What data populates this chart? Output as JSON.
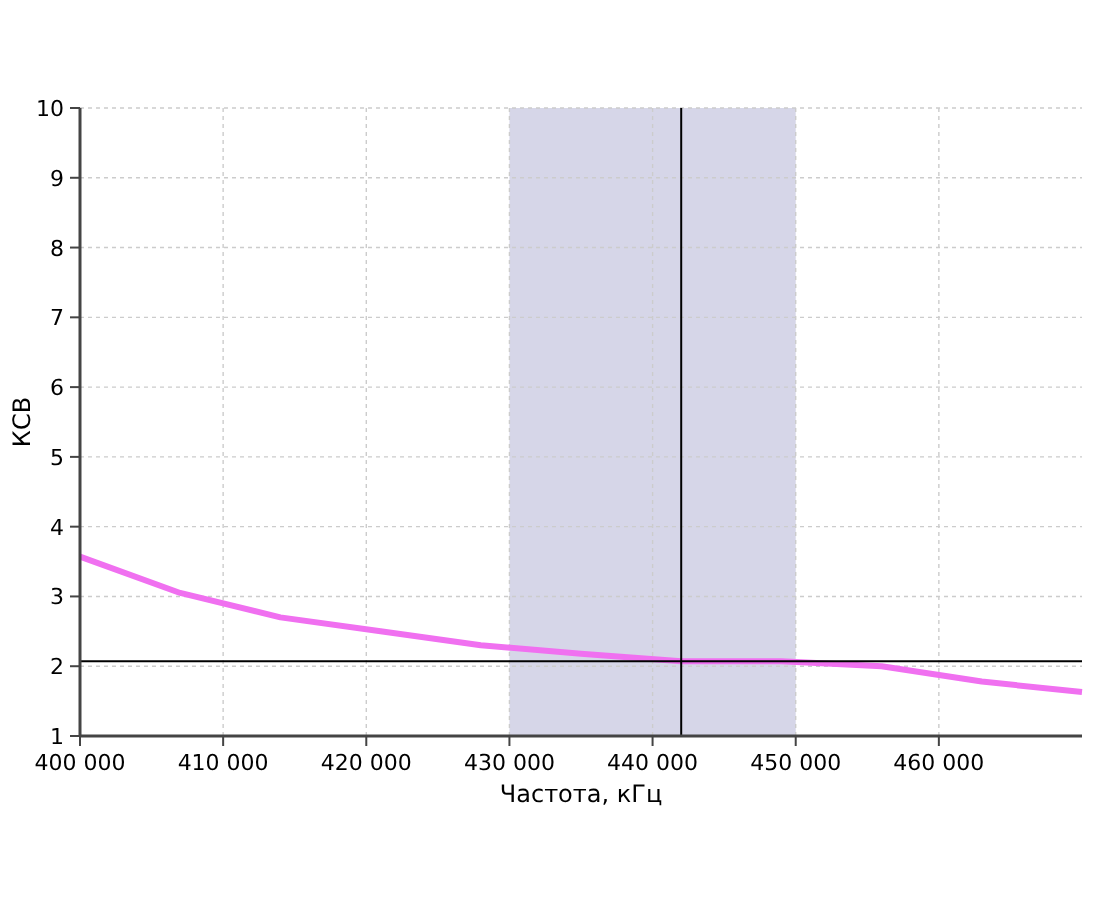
{
  "chart_data": {
    "type": "line",
    "xlabel": "Частота, кГц",
    "ylabel": "КСВ",
    "x": [
      400000,
      407000,
      414000,
      421000,
      428000,
      435000,
      442000,
      449000,
      456000,
      463000,
      470000
    ],
    "series": [
      {
        "color": "#f070f0",
        "values": [
          3.57,
          3.05,
          2.7,
          2.5,
          2.3,
          2.18,
          2.07,
          2.07,
          2.0,
          1.78,
          1.63
        ]
      }
    ],
    "xlim": [
      400000,
      470000
    ],
    "xticks": [
      {
        "value": 400000,
        "label": "400 000"
      },
      {
        "value": 410000,
        "label": "410 000"
      },
      {
        "value": 420000,
        "label": "420 000"
      },
      {
        "value": 430000,
        "label": "430 000"
      },
      {
        "value": 440000,
        "label": "440 000"
      },
      {
        "value": 450000,
        "label": "450 000"
      },
      {
        "value": 460000,
        "label": "460 000"
      }
    ],
    "ylim": [
      1,
      10
    ],
    "yticks": [
      1,
      2,
      3,
      4,
      5,
      6,
      7,
      8,
      9,
      10
    ],
    "grid": true,
    "marker": "none",
    "line_style": "solid",
    "ref_lines": [
      {
        "axis": "x",
        "value": 442000,
        "color": "#000000"
      },
      {
        "axis": "y",
        "value": 2.07,
        "color": "#000000"
      }
    ],
    "bands": [
      {
        "axis": "x",
        "from": 430000,
        "to": 450000,
        "color": "#d6d6e8"
      }
    ]
  }
}
